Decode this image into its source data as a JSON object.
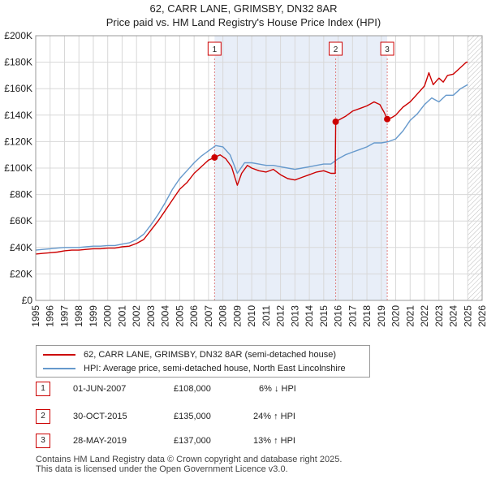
{
  "header": {
    "title_line1": "62, CARR LANE, GRIMSBY, DN32 8AR",
    "title_line2": "Price paid vs. HM Land Registry's House Price Index (HPI)"
  },
  "legend": {
    "property_label": "62, CARR LANE, GRIMSBY, DN32 8AR (semi-detached house)",
    "hpi_label": "HPI: Average price, semi-detached house, North East Lincolnshire"
  },
  "sales": [
    {
      "num": "1",
      "date": "01-JUN-2007",
      "price": "£108,000",
      "hpi_diff": "6% ↓ HPI"
    },
    {
      "num": "2",
      "date": "30-OCT-2015",
      "price": "£135,000",
      "hpi_diff": "24% ↑ HPI"
    },
    {
      "num": "3",
      "date": "28-MAY-2019",
      "price": "£137,000",
      "hpi_diff": "13% ↑ HPI"
    }
  ],
  "footer": {
    "line1": "Contains HM Land Registry data © Crown copyright and database right 2025.",
    "line2": "This data is licensed under the Open Government Licence v3.0."
  },
  "chart_data": {
    "type": "line",
    "title": "Price paid vs. HM Land Registry's House Price Index (HPI)",
    "xlim": [
      1995,
      2026
    ],
    "ylim": [
      0,
      200000
    ],
    "x_ticks": [
      "1995",
      "1996",
      "1997",
      "1998",
      "1999",
      "2000",
      "2001",
      "2002",
      "2003",
      "2004",
      "2005",
      "2006",
      "2007",
      "2008",
      "2009",
      "2010",
      "2011",
      "2012",
      "2013",
      "2014",
      "2015",
      "2016",
      "2017",
      "2018",
      "2019",
      "2020",
      "2021",
      "2022",
      "2023",
      "2024",
      "2025",
      "2026"
    ],
    "y_ticks": [
      {
        "value": 0,
        "label": "£0"
      },
      {
        "value": 20000,
        "label": "£20K"
      },
      {
        "value": 40000,
        "label": "£40K"
      },
      {
        "value": 60000,
        "label": "£60K"
      },
      {
        "value": 80000,
        "label": "£80K"
      },
      {
        "value": 100000,
        "label": "£100K"
      },
      {
        "value": 120000,
        "label": "£120K"
      },
      {
        "value": 140000,
        "label": "£140K"
      },
      {
        "value": 160000,
        "label": "£160K"
      },
      {
        "value": 180000,
        "label": "£180K"
      },
      {
        "value": 200000,
        "label": "£200K"
      }
    ],
    "shaded_range": [
      2007.42,
      2019.41
    ],
    "future_hatch_from": 2025.0,
    "series": [
      {
        "name": "62, CARR LANE, GRIMSBY, DN32 8AR (semi-detached house)",
        "color": "#cc0000",
        "x": [
          1995.0,
          1995.5,
          1996.0,
          1996.5,
          1997.0,
          1997.5,
          1998.0,
          1998.5,
          1999.0,
          1999.5,
          2000.0,
          2000.5,
          2001.0,
          2001.5,
          2002.0,
          2002.5,
          2003.0,
          2003.5,
          2004.0,
          2004.5,
          2005.0,
          2005.5,
          2006.0,
          2006.5,
          2007.0,
          2007.42,
          2007.8,
          2008.2,
          2008.6,
          2009.0,
          2009.3,
          2009.7,
          2010.0,
          2010.5,
          2011.0,
          2011.5,
          2012.0,
          2012.5,
          2013.0,
          2013.5,
          2014.0,
          2014.5,
          2015.0,
          2015.5,
          2015.8,
          2015.83,
          2016.0,
          2016.5,
          2017.0,
          2017.5,
          2018.0,
          2018.5,
          2018.9,
          2019.2,
          2019.41,
          2019.7,
          2020.0,
          2020.5,
          2021.0,
          2021.5,
          2022.0,
          2022.3,
          2022.6,
          2023.0,
          2023.3,
          2023.6,
          2024.0,
          2024.5,
          2024.9,
          2025.0
        ],
        "values": [
          35000,
          35500,
          36000,
          36500,
          37500,
          38000,
          38000,
          38500,
          39000,
          39000,
          39500,
          39500,
          40500,
          41000,
          43000,
          46000,
          53000,
          60000,
          68000,
          76000,
          84000,
          89000,
          96000,
          101000,
          106000,
          108000,
          110000,
          107000,
          101000,
          87000,
          96000,
          102000,
          100000,
          98000,
          97000,
          99000,
          95000,
          92000,
          91000,
          93000,
          95000,
          97000,
          98000,
          96000,
          96000,
          135000,
          136000,
          139000,
          143000,
          145000,
          147000,
          150000,
          148000,
          142000,
          137000,
          138000,
          140000,
          146000,
          150000,
          156000,
          162000,
          172000,
          163000,
          168000,
          165000,
          170000,
          171000,
          176000,
          180000,
          180000
        ]
      },
      {
        "name": "HPI: Average price, semi-detached house, North East Lincolnshire",
        "color": "#6699cc",
        "x": [
          1995.0,
          1995.5,
          1996.0,
          1996.5,
          1997.0,
          1997.5,
          1998.0,
          1998.5,
          1999.0,
          1999.5,
          2000.0,
          2000.5,
          2001.0,
          2001.5,
          2002.0,
          2002.5,
          2003.0,
          2003.5,
          2004.0,
          2004.5,
          2005.0,
          2005.5,
          2006.0,
          2006.5,
          2007.0,
          2007.5,
          2008.0,
          2008.5,
          2009.0,
          2009.5,
          2010.0,
          2010.5,
          2011.0,
          2011.5,
          2012.0,
          2012.5,
          2013.0,
          2013.5,
          2014.0,
          2014.5,
          2015.0,
          2015.5,
          2016.0,
          2016.5,
          2017.0,
          2017.5,
          2018.0,
          2018.5,
          2019.0,
          2019.5,
          2020.0,
          2020.5,
          2021.0,
          2021.5,
          2022.0,
          2022.5,
          2023.0,
          2023.5,
          2024.0,
          2024.5,
          2025.0
        ],
        "values": [
          38000,
          38500,
          39000,
          39500,
          40000,
          40000,
          40000,
          40500,
          41000,
          41000,
          41500,
          41500,
          42500,
          43500,
          46000,
          50000,
          57000,
          65000,
          74000,
          84000,
          92000,
          98000,
          104000,
          109000,
          113000,
          117000,
          116000,
          110000,
          96000,
          104000,
          104000,
          103000,
          102000,
          102000,
          101000,
          100000,
          99000,
          100000,
          101000,
          102000,
          103000,
          103000,
          107000,
          110000,
          112000,
          114000,
          116000,
          119000,
          119000,
          120000,
          122000,
          128000,
          136000,
          141000,
          148000,
          153000,
          150000,
          155000,
          155000,
          160000,
          163000
        ]
      }
    ],
    "markers": [
      {
        "label": "1",
        "x": 2007.42,
        "value": 108000
      },
      {
        "label": "2",
        "x": 2015.83,
        "value": 135000
      },
      {
        "label": "3",
        "x": 2019.41,
        "value": 137000
      }
    ]
  }
}
